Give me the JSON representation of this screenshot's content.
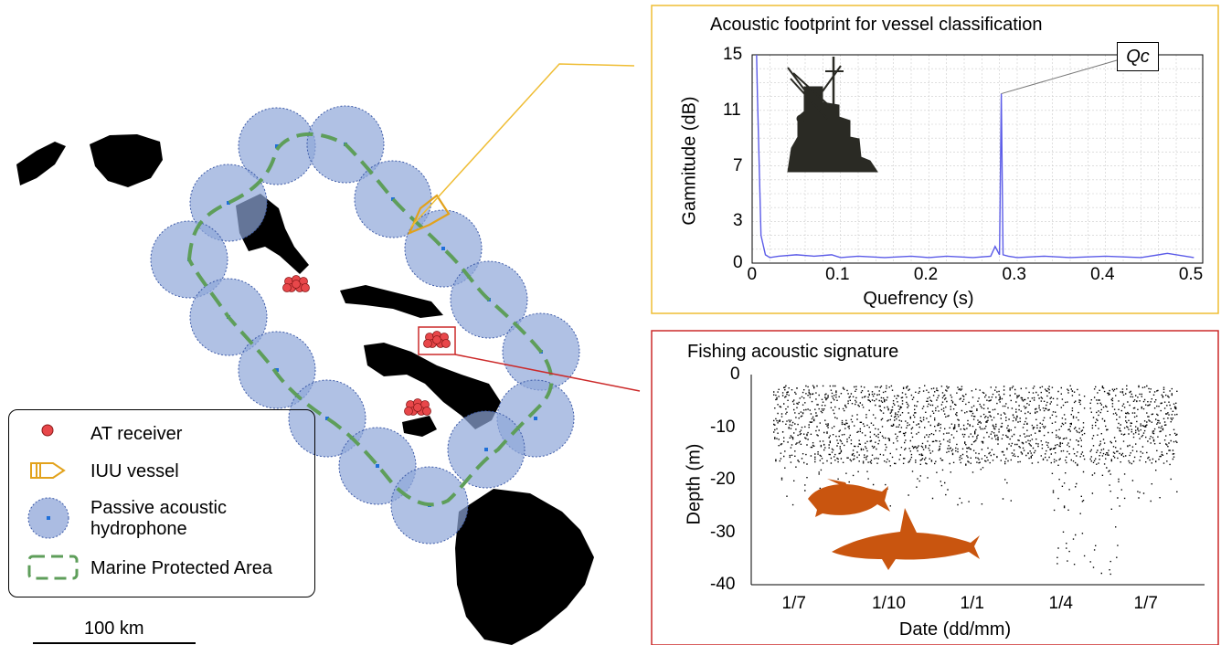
{
  "legend": {
    "receiver": "AT receiver",
    "vessel": "IUU vessel",
    "hydrophone_line1": "Passive acoustic",
    "hydrophone_line2": "hydrophone",
    "mpa": "Marine Protected Area"
  },
  "scale": {
    "label": "100 km"
  },
  "colors": {
    "hydrophone_fill": "#8fa6d8",
    "mpa_line": "#5e9e5a",
    "receiver": "#e8474a",
    "vessel": "#e2a21c",
    "panel1_border": "#efbd34",
    "panel2_border": "#cc2a2a",
    "cepstrum": "#5b5be8",
    "fish": "#c9550f"
  },
  "panel_top": {
    "title": "Acoustic footprint for vessel classification",
    "annotation": "Qc",
    "chart_data": {
      "type": "line",
      "xlabel": "Quefrency (s)",
      "ylabel": "Gamnitude (dB)",
      "xlim": [
        0,
        0.51
      ],
      "ylim": [
        0,
        15
      ],
      "xticks": [
        "0",
        "0.1",
        "0.2",
        "0.3",
        "0.4",
        "0.5"
      ],
      "yticks": [
        "0",
        "3",
        "7",
        "11",
        "15"
      ],
      "grid": true,
      "series": [
        {
          "x": [
            0.005,
            0.006,
            0.008,
            0.01,
            0.015,
            0.02,
            0.03,
            0.05,
            0.07,
            0.09,
            0.1,
            0.12,
            0.15,
            0.18,
            0.2,
            0.22,
            0.25,
            0.27,
            0.275,
            0.28,
            0.282,
            0.284,
            0.29,
            0.3,
            0.33,
            0.36,
            0.4,
            0.44,
            0.47,
            0.5
          ],
          "y": [
            15,
            12,
            7,
            2,
            0.6,
            0.4,
            0.5,
            0.6,
            0.5,
            0.6,
            0.4,
            0.5,
            0.4,
            0.5,
            0.4,
            0.5,
            0.4,
            0.5,
            1.2,
            0.6,
            12.2,
            0.6,
            0.5,
            0.4,
            0.5,
            0.4,
            0.5,
            0.4,
            0.7,
            0.4
          ]
        }
      ]
    }
  },
  "panel_bottom": {
    "title": "Fishing acoustic signature",
    "chart_data": {
      "type": "scatter",
      "xlabel": "Date (dd/mm)",
      "ylabel": "Depth (m)",
      "ylim": [
        -40,
        0
      ],
      "xticks": [
        "1/7",
        "1/10",
        "1/1",
        "1/4",
        "1/7"
      ],
      "yticks": [
        "0",
        "-10",
        "-20",
        "-30",
        "-40"
      ],
      "depth_typical_min": -17,
      "depth_typical_max": -2,
      "depth_max_dive": -38
    }
  }
}
